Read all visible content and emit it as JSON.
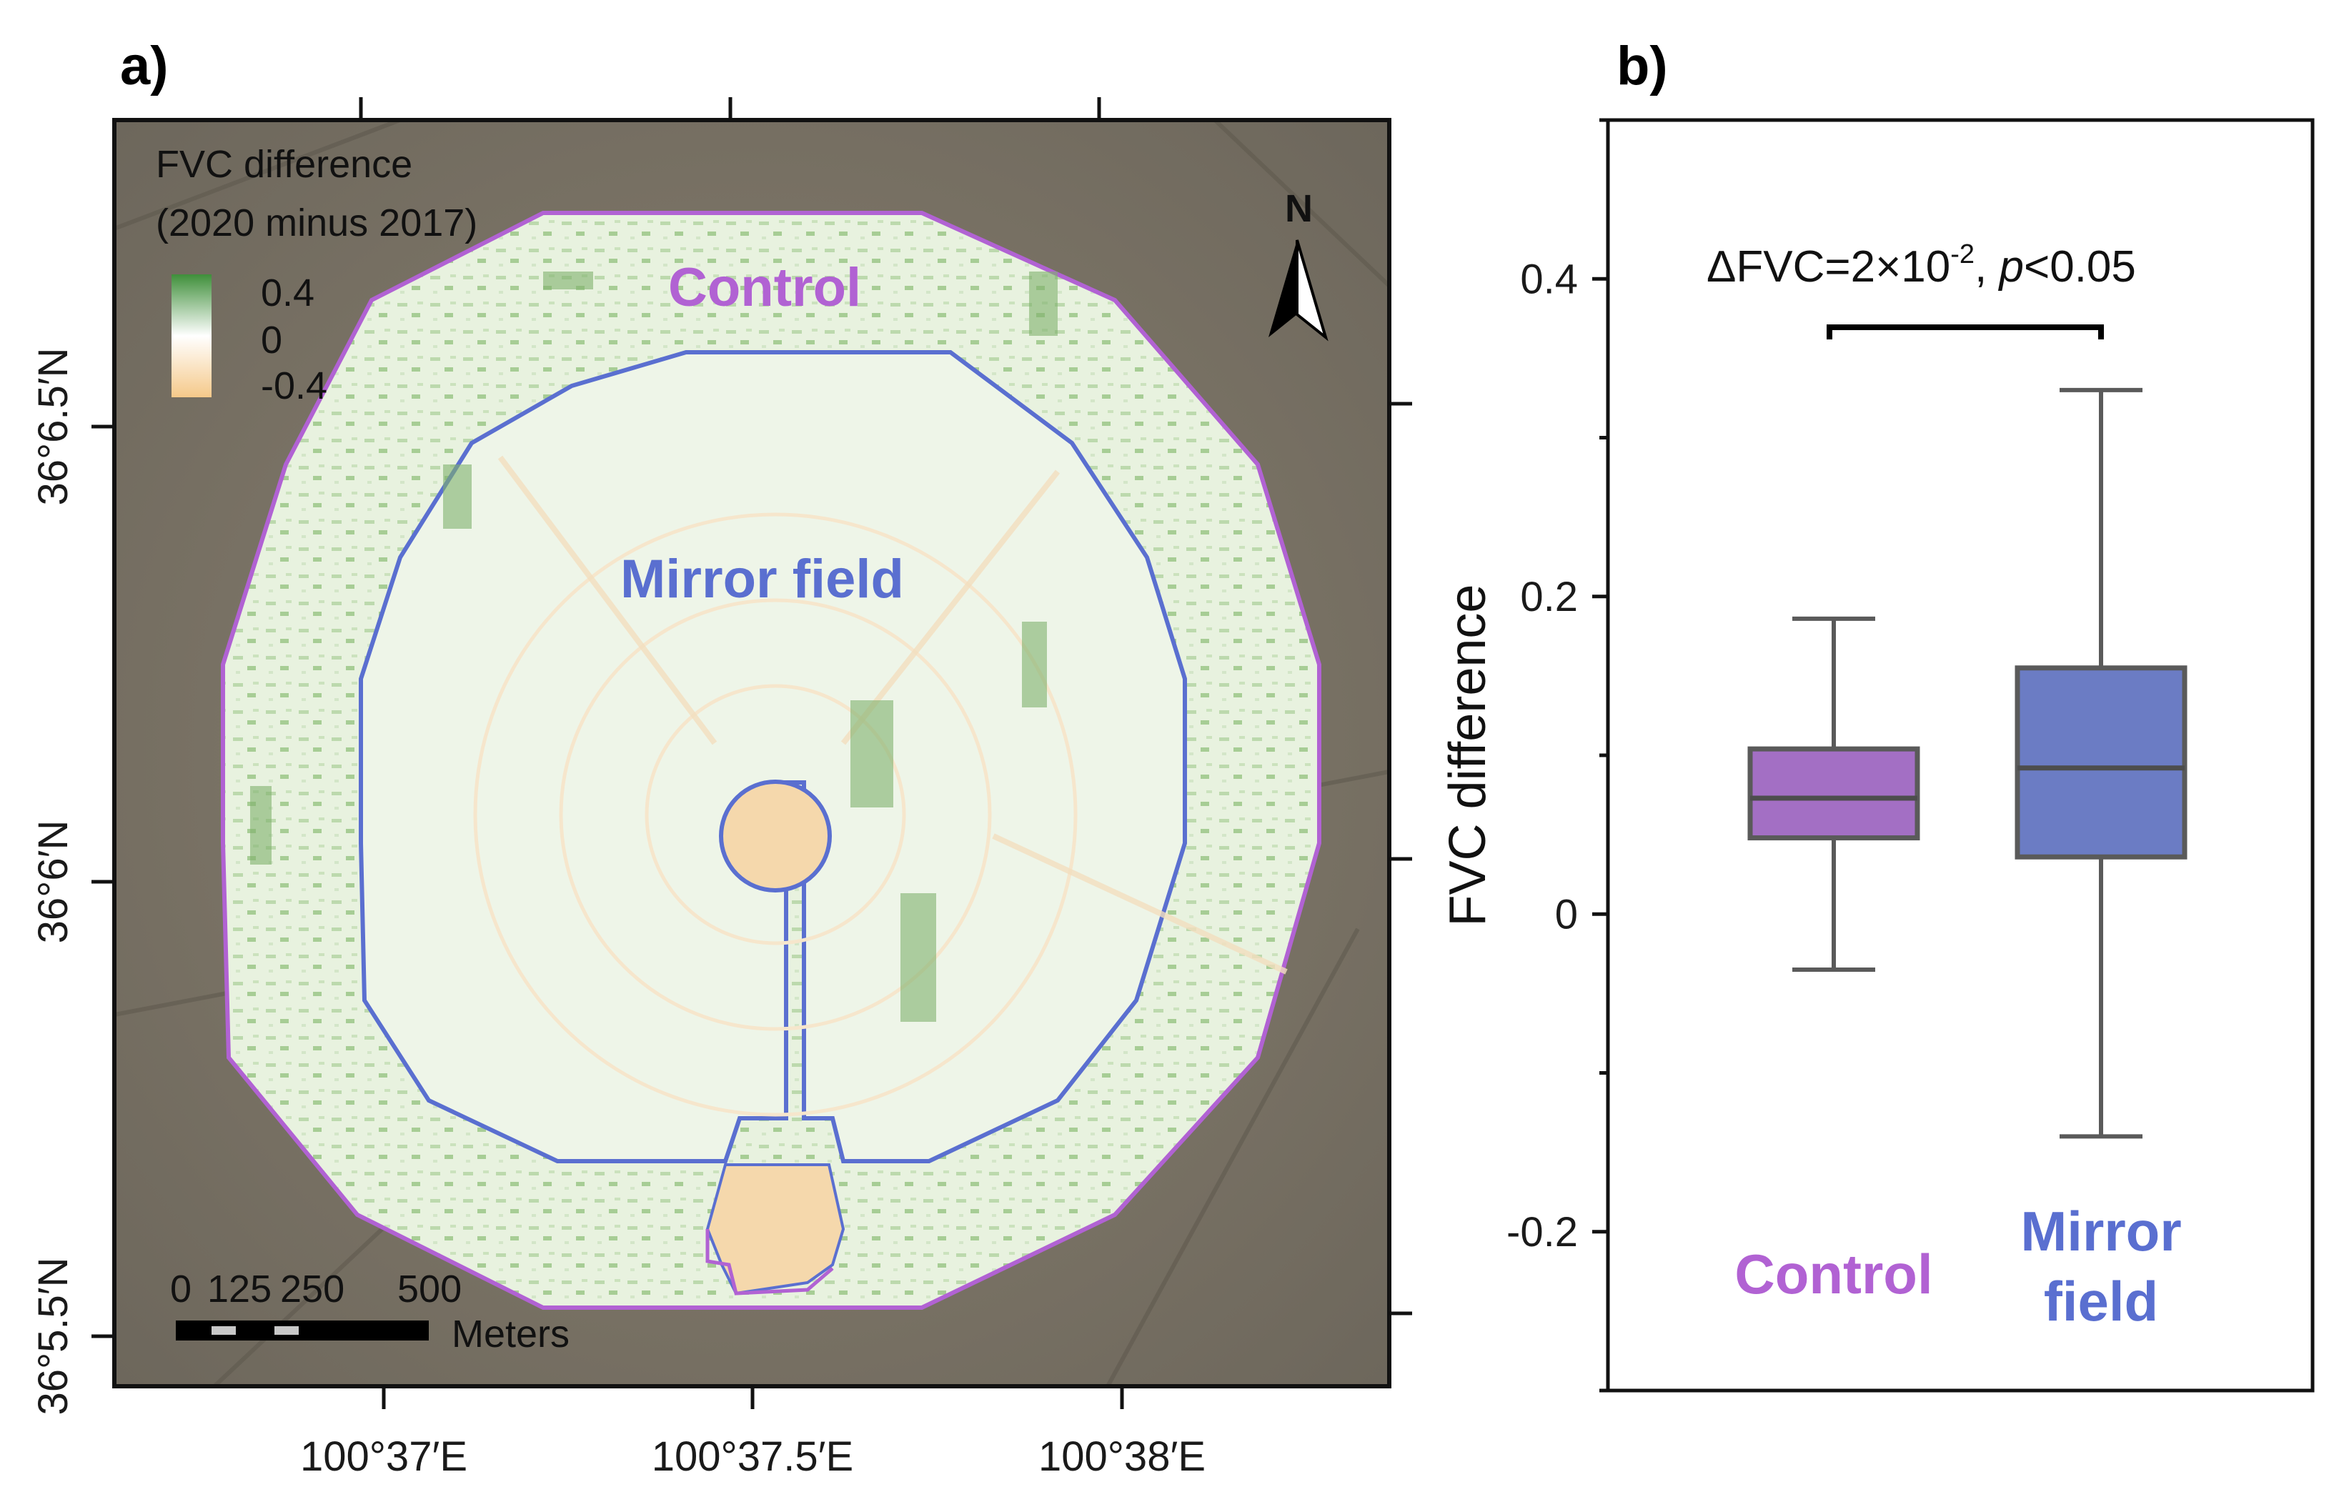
{
  "panel_a": {
    "label": "a)",
    "legend": {
      "title_line1": "FVC difference",
      "title_line2": "(2020 minus 2017)",
      "max_label": "0.4",
      "mid_label": "0",
      "min_label": "-0.4",
      "color_high": "#3f8f3a",
      "color_mid": "#ffffff",
      "color_low": "#f5c98a"
    },
    "north_label": "N",
    "control_label": "Control",
    "mirror_label": "Mirror field",
    "control_color": "#b162d3",
    "mirror_color": "#5a6fd0",
    "scale_bar": {
      "ticks": [
        "0",
        "125",
        "250",
        "500"
      ],
      "unit": "Meters"
    },
    "lat_ticks": [
      "36°6.5′N",
      "36°6′N",
      "36°5.5′N"
    ],
    "lon_ticks": [
      "100°37′E",
      "100°37.5′E",
      "100°38′E"
    ]
  },
  "panel_b": {
    "label": "b)",
    "significance_text": "ΔFVC=2×10",
    "significance_exp": "-2",
    "significance_sep": ", ",
    "significance_p": "p",
    "significance_cond": "<0.05"
  },
  "chart_data": {
    "type": "box",
    "title": "",
    "ylabel": "FVC difference",
    "ylim": [
      -0.3,
      0.5
    ],
    "yticks": [
      -0.2,
      0,
      0.2,
      0.4
    ],
    "ytick_labels": [
      "-0.2",
      "0",
      "0.2",
      "0.4"
    ],
    "categories": [
      {
        "name_lines": [
          "Control"
        ],
        "color": "#a36fc4",
        "label_color": "#b162d3",
        "whisker_low": -0.035,
        "q1": 0.048,
        "median": 0.073,
        "q3": 0.104,
        "whisker_high": 0.186
      },
      {
        "name_lines": [
          "Mirror",
          "field"
        ],
        "color": "#6b7cc4",
        "label_color": "#5a6fd0",
        "whisker_low": -0.14,
        "q1": 0.036,
        "median": 0.092,
        "q3": 0.155,
        "whisker_high": 0.33
      }
    ]
  }
}
